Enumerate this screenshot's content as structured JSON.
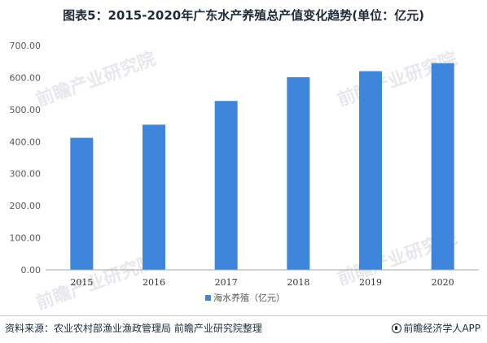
{
  "title": "图表5：2015-2020年广东水产养殖总产值变化趋势(单位：亿元)",
  "watermark": "前瞻产业研究院",
  "chart_data": {
    "type": "bar",
    "categories": [
      "2015",
      "2016",
      "2017",
      "2018",
      "2019",
      "2020"
    ],
    "series": [
      {
        "name": "海水养殖（亿元）",
        "values": [
          412,
          453,
          527,
          601,
          620,
          645
        ]
      }
    ],
    "ylim": [
      0,
      700
    ],
    "yticks": [
      "0.00",
      "100.00",
      "200.00",
      "300.00",
      "400.00",
      "500.00",
      "600.00",
      "700.00"
    ],
    "grid": false,
    "legend_position": "bottom-center",
    "colors": {
      "bar": "#3d86dc",
      "axis": "#a6a6a6",
      "text": "#595959"
    }
  },
  "footer": {
    "source": "资料来源：农业农村部渔业渔政管理局 前瞻产业研究院整理",
    "brand": "前瞻经济学人APP"
  }
}
